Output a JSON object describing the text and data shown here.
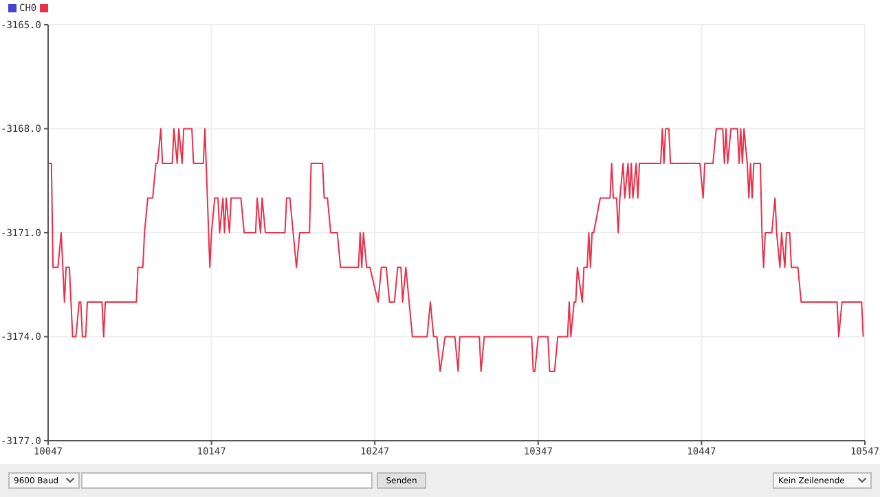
{
  "chart_data": {
    "type": "line",
    "x": [
      10047,
      10049,
      10050,
      10053,
      10055,
      10056,
      10057,
      10058,
      10060,
      10062,
      10064,
      10066,
      10067,
      10068,
      10070,
      10071,
      10080,
      10081,
      10082,
      10101,
      10102,
      10105,
      10106,
      10108,
      10111,
      10113,
      10114,
      10116,
      10117,
      10123,
      10124,
      10126,
      10127,
      10129,
      10130,
      10135,
      10136,
      10142,
      10143,
      10146,
      10147,
      10149,
      10151,
      10152,
      10154,
      10155,
      10156,
      10158,
      10159,
      10165,
      10167,
      10174,
      10175,
      10177,
      10178,
      10180,
      10192,
      10193,
      10195,
      10197,
      10199,
      10201,
      10207,
      10208,
      10215,
      10216,
      10218,
      10220,
      10224,
      10226,
      10237,
      10238,
      10239,
      10240,
      10242,
      10244,
      10249,
      10251,
      10254,
      10256,
      10259,
      10261,
      10263,
      10264,
      10266,
      10268,
      10270,
      10279,
      10281,
      10283,
      10285,
      10287,
      10290,
      10296,
      10298,
      10299,
      10311,
      10312,
      10314,
      10343,
      10344,
      10345,
      10347,
      10353,
      10354,
      10357,
      10359,
      10365,
      10366,
      10367,
      10369,
      10370,
      10371,
      10374,
      10375,
      10377,
      10378,
      10379,
      10380,
      10381,
      10385,
      10391,
      10392,
      10393,
      10395,
      10396,
      10397,
      10399,
      10400,
      10402,
      10403,
      10404,
      10405,
      10407,
      10408,
      10409,
      10422,
      10423,
      10424,
      10425,
      10427,
      10428,
      10430,
      10446,
      10448,
      10449,
      10454,
      10456,
      10460,
      10461,
      10462,
      10463,
      10465,
      10469,
      10470,
      10471,
      10472,
      10473,
      10475,
      10476,
      10477,
      10478,
      10479,
      10483,
      10484,
      10485,
      10486,
      10490,
      10492,
      10493,
      10495,
      10496,
      10498,
      10499,
      10501,
      10502,
      10506,
      10508,
      10530,
      10531,
      10533,
      10545,
      10546
    ],
    "series": [
      {
        "name": "CH0",
        "color": "#e8304a",
        "values": [
          -3169,
          -3169,
          -3172,
          -3172,
          -3171,
          -3172,
          -3173,
          -3172,
          -3172,
          -3174,
          -3174,
          -3173,
          -3173,
          -3174,
          -3174,
          -3173,
          -3173,
          -3174,
          -3173,
          -3173,
          -3172,
          -3172,
          -3171,
          -3170,
          -3170,
          -3169,
          -3169,
          -3168,
          -3169,
          -3169,
          -3168,
          -3169,
          -3168,
          -3169,
          -3168,
          -3168,
          -3169,
          -3169,
          -3168,
          -3172,
          -3171,
          -3170,
          -3170,
          -3171,
          -3170,
          -3171,
          -3170,
          -3171,
          -3170,
          -3170,
          -3171,
          -3171,
          -3170,
          -3171,
          -3170,
          -3171,
          -3171,
          -3170,
          -3170,
          -3171,
          -3172,
          -3171,
          -3171,
          -3169,
          -3169,
          -3170,
          -3170,
          -3171,
          -3171,
          -3172,
          -3172,
          -3171,
          -3172,
          -3171,
          -3172,
          -3172,
          -3173,
          -3172,
          -3172,
          -3173,
          -3173,
          -3172,
          -3172,
          -3173,
          -3172,
          -3173,
          -3174,
          -3174,
          -3173,
          -3174,
          -3174,
          -3175,
          -3174,
          -3174,
          -3175,
          -3174,
          -3174,
          -3175,
          -3174,
          -3174,
          -3175,
          -3175,
          -3174,
          -3174,
          -3175,
          -3175,
          -3174,
          -3174,
          -3173,
          -3174,
          -3173,
          -3173,
          -3172,
          -3173,
          -3172,
          -3172,
          -3171,
          -3172,
          -3171,
          -3171,
          -3170,
          -3170,
          -3169,
          -3170,
          -3170,
          -3171,
          -3170,
          -3169,
          -3170,
          -3169,
          -3170,
          -3169,
          -3170,
          -3169,
          -3170,
          -3169,
          -3169,
          -3168,
          -3169,
          -3168,
          -3168,
          -3169,
          -3169,
          -3169,
          -3170,
          -3169,
          -3169,
          -3168,
          -3168,
          -3169,
          -3168,
          -3169,
          -3168,
          -3168,
          -3169,
          -3168,
          -3169,
          -3168,
          -3169,
          -3170,
          -3169,
          -3170,
          -3169,
          -3169,
          -3171,
          -3172,
          -3171,
          -3171,
          -3170,
          -3171,
          -3172,
          -3171,
          -3172,
          -3171,
          -3171,
          -3172,
          -3172,
          -3173,
          -3173,
          -3174,
          -3173,
          -3173,
          -3174
        ]
      }
    ],
    "xlim": [
      10047,
      10547
    ],
    "xticks": [
      10047,
      10147,
      10247,
      10347,
      10447,
      10547
    ],
    "ylim": [
      -3177,
      -3165
    ],
    "yticks": [
      {
        "value": -3177,
        "label": "-3177.0"
      },
      {
        "value": -3174,
        "label": "-3174.0"
      },
      {
        "value": -3171,
        "label": "-3171.0"
      },
      {
        "value": -3168,
        "label": "-3168.0"
      },
      {
        "value": -3165,
        "label": "-3165.0"
      }
    ],
    "grid": true,
    "legend": "top left",
    "marker": "none",
    "line_style": "solid",
    "annotations": [
      "9600 Baud",
      "Senden",
      "Kein Zeilenende"
    ]
  }
}
